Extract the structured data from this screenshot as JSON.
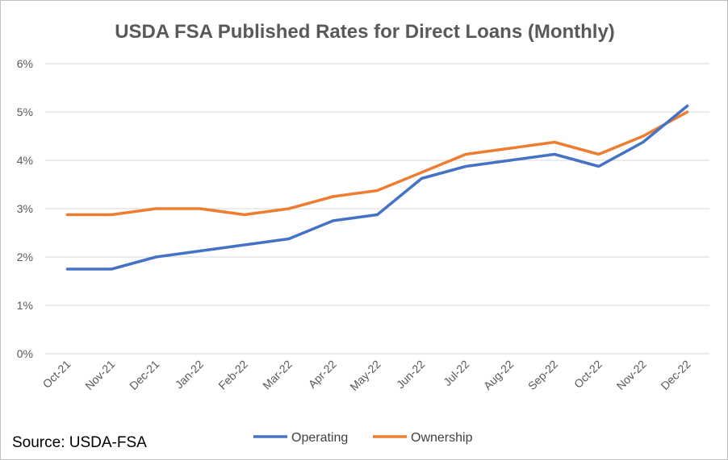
{
  "chart_data": {
    "type": "line",
    "title": "USDA FSA Published Rates for Direct Loans (Monthly)",
    "xlabel": "",
    "ylabel": "",
    "categories": [
      "Oct-21",
      "Nov-21",
      "Dec-21",
      "Jan-22",
      "Feb-22",
      "Mar-22",
      "Apr-22",
      "May-22",
      "Jun-22",
      "Jul-22",
      "Aug-22",
      "Sep-22",
      "Oct-22",
      "Nov-22",
      "Dec-22"
    ],
    "ylim": [
      0,
      6
    ],
    "yticks": [
      0,
      1,
      2,
      3,
      4,
      5,
      6
    ],
    "ytick_labels": [
      "0%",
      "1%",
      "2%",
      "3%",
      "4%",
      "5%",
      "6%"
    ],
    "grid": "horizontal",
    "legend": "bottom",
    "series": [
      {
        "name": "Operating",
        "color": "#4472C4",
        "values": [
          1.75,
          1.75,
          2.0,
          2.125,
          2.25,
          2.375,
          2.75,
          2.875,
          3.625,
          3.875,
          4.0,
          4.125,
          3.875,
          4.375,
          5.125
        ]
      },
      {
        "name": "Ownership",
        "color": "#ED7D31",
        "values": [
          2.875,
          2.875,
          3.0,
          3.0,
          2.875,
          3.0,
          3.25,
          3.375,
          3.75,
          4.125,
          4.25,
          4.375,
          4.125,
          4.5,
          5.0
        ]
      }
    ]
  },
  "source": "Source: USDA-FSA"
}
